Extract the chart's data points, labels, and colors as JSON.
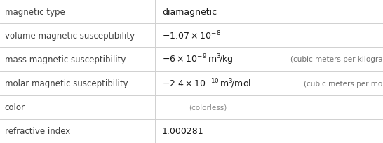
{
  "rows": [
    {
      "label": "magnetic type",
      "value_main": "diamagnetic",
      "value_math": false,
      "value_secondary": ""
    },
    {
      "label": "volume magnetic susceptibility",
      "value_main": "$-1.07\\times10^{-8}$",
      "value_math": true,
      "value_secondary": ""
    },
    {
      "label": "mass magnetic susceptibility",
      "value_main": "$-6\\times10^{-9}\\,\\mathrm{m}^3\\!/\\mathrm{kg}$",
      "value_math": true,
      "value_secondary": "(cubic meters per kilogram)"
    },
    {
      "label": "molar magnetic susceptibility",
      "value_main": "$-2.4\\times10^{-10}\\,\\mathrm{m}^3\\!/\\mathrm{mol}$",
      "value_math": true,
      "value_secondary": "(cubic meters per mole)"
    },
    {
      "label": "color",
      "value_main": "(colorless)",
      "value_math": false,
      "value_secondary": ""
    },
    {
      "label": "refractive index",
      "value_main": "1.000281",
      "value_math": false,
      "value_secondary": ""
    }
  ],
  "col_split": 0.405,
  "bg_color": "#ffffff",
  "label_color": "#404040",
  "value_color": "#1a1a1a",
  "secondary_color": "#707070",
  "colorless_color": "#888888",
  "line_color": "#d0d0d0",
  "label_fontsize": 8.5,
  "value_fontsize": 9.0,
  "secondary_fontsize": 7.5,
  "colorless_fontsize": 7.5
}
